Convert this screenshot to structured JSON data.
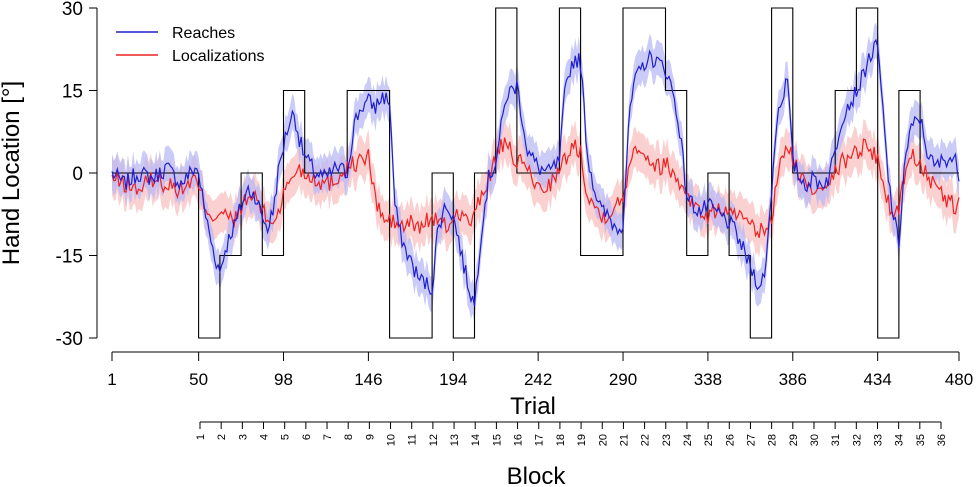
{
  "chart_data": {
    "type": "line",
    "ylabel": "Hand Location [°]",
    "xlabel": "Trial",
    "block_label": "Block",
    "ylim": [
      -30,
      30
    ],
    "xlim": [
      1,
      480
    ],
    "yticks": [
      "30",
      "15",
      "0",
      "-15",
      "-30"
    ],
    "yticks_values": [
      30,
      15,
      0,
      -15,
      -30
    ],
    "xticks": [
      "1",
      "50",
      "98",
      "146",
      "194",
      "242",
      "290",
      "338",
      "386",
      "434",
      "480"
    ],
    "xticks_values": [
      1,
      50,
      98,
      146,
      194,
      242,
      290,
      338,
      386,
      434,
      480
    ],
    "blocks": [
      "1",
      "2",
      "3",
      "4",
      "5",
      "6",
      "7",
      "8",
      "9",
      "10",
      "11",
      "12",
      "13",
      "14",
      "15",
      "16",
      "17",
      "18",
      "19",
      "20",
      "21",
      "22",
      "23",
      "24",
      "25",
      "26",
      "27",
      "28",
      "29",
      "30",
      "31",
      "32",
      "33",
      "34",
      "35",
      "36"
    ],
    "legend": {
      "position": "top-left",
      "entries": [
        "Reaches",
        "Localizations"
      ]
    },
    "colors": {
      "reaches": "#1f1fcf",
      "reaches_band": "#b9b9f5",
      "localizations": "#ee2222",
      "localizations_band": "#f9c0c0",
      "perturbation": "#000000"
    },
    "perturbation_schedule": {
      "x": [
        1,
        50,
        50,
        62,
        62,
        74,
        74,
        86,
        86,
        98,
        98,
        110,
        110,
        134,
        134,
        158,
        158,
        182,
        182,
        194,
        194,
        206,
        206,
        218,
        218,
        230,
        230,
        254,
        254,
        266,
        266,
        290,
        290,
        314,
        314,
        326,
        326,
        338,
        338,
        350,
        350,
        362,
        362,
        374,
        374,
        386,
        386,
        410,
        410,
        422,
        422,
        434,
        434,
        446,
        446,
        458,
        458,
        480
      ],
      "y": [
        0,
        0,
        -30,
        -30,
        -15,
        -15,
        0,
        0,
        -15,
        -15,
        15,
        15,
        0,
        0,
        15,
        15,
        -30,
        -30,
        0,
        0,
        -30,
        -30,
        0,
        0,
        30,
        30,
        0,
        0,
        30,
        30,
        -15,
        -15,
        30,
        30,
        15,
        15,
        -15,
        -15,
        0,
        0,
        -15,
        -15,
        -30,
        -30,
        30,
        30,
        0,
        0,
        15,
        15,
        30,
        30,
        -30,
        -30,
        15,
        15,
        0,
        0
      ]
    },
    "series": [
      {
        "name": "Reaches",
        "x": [
          1,
          8,
          16,
          24,
          32,
          40,
          48,
          50,
          53,
          56,
          59,
          62,
          65,
          68,
          71,
          74,
          78,
          82,
          86,
          89,
          92,
          95,
          98,
          101,
          104,
          107,
          110,
          116,
          122,
          128,
          134,
          138,
          142,
          146,
          150,
          154,
          158,
          161,
          164,
          167,
          170,
          174,
          178,
          182,
          185,
          188,
          191,
          194,
          197,
          200,
          203,
          206,
          210,
          214,
          218,
          221,
          224,
          227,
          230,
          236,
          242,
          248,
          254,
          257,
          260,
          263,
          266,
          270,
          274,
          278,
          282,
          286,
          290,
          293,
          296,
          299,
          302,
          306,
          310,
          314,
          318,
          322,
          326,
          330,
          334,
          338,
          342,
          346,
          350,
          354,
          358,
          362,
          365,
          368,
          371,
          374,
          377,
          380,
          383,
          386,
          390,
          394,
          398,
          402,
          406,
          410,
          413,
          416,
          419,
          422,
          425,
          428,
          431,
          434,
          437,
          440,
          443,
          446,
          449,
          452,
          455,
          458,
          462,
          466,
          470,
          474,
          478,
          480
        ],
        "y": [
          0,
          -2,
          0,
          -1,
          1,
          -2,
          1,
          0,
          -6,
          -11,
          -15,
          -18,
          -14,
          -11,
          -9,
          -6,
          -3,
          -4,
          -8,
          -10,
          -7,
          0,
          5,
          9,
          11,
          6,
          3,
          0,
          -1,
          1,
          0,
          9,
          12,
          13,
          12,
          14,
          13,
          -6,
          -11,
          -14,
          -16,
          -19,
          -20,
          -21,
          -11,
          -7,
          -6,
          -8,
          -12,
          -17,
          -21,
          -24,
          -10,
          -1,
          2,
          8,
          14,
          15,
          16,
          4,
          1,
          0,
          2,
          14,
          19,
          21,
          20,
          3,
          -3,
          -7,
          -8,
          -10,
          -9,
          8,
          16,
          18,
          20,
          21,
          20,
          19,
          15,
          8,
          -4,
          -6,
          -7,
          -6,
          -7,
          -8,
          -9,
          -11,
          -14,
          -17,
          -19,
          -21,
          -16,
          -3,
          10,
          14,
          17,
          2,
          -1,
          -2,
          -1,
          -2,
          -1,
          4,
          9,
          12,
          13,
          15,
          17,
          20,
          22,
          23,
          11,
          -1,
          -8,
          -13,
          1,
          7,
          9,
          10,
          4,
          1,
          2,
          3,
          2,
          0
        ]
      },
      {
        "name": "Localizations",
        "x": [
          1,
          8,
          16,
          24,
          32,
          40,
          48,
          50,
          54,
          58,
          62,
          66,
          70,
          74,
          78,
          82,
          86,
          90,
          94,
          98,
          102,
          106,
          110,
          116,
          122,
          128,
          134,
          140,
          146,
          150,
          154,
          158,
          162,
          166,
          170,
          174,
          178,
          182,
          186,
          190,
          194,
          198,
          202,
          206,
          210,
          214,
          218,
          222,
          226,
          230,
          236,
          242,
          248,
          254,
          258,
          262,
          266,
          270,
          274,
          278,
          282,
          286,
          290,
          294,
          298,
          302,
          306,
          310,
          314,
          318,
          322,
          326,
          330,
          334,
          338,
          342,
          346,
          350,
          354,
          358,
          362,
          366,
          370,
          374,
          378,
          382,
          386,
          390,
          394,
          398,
          402,
          406,
          410,
          414,
          418,
          422,
          426,
          430,
          434,
          438,
          442,
          446,
          450,
          454,
          458,
          462,
          466,
          470,
          474,
          478,
          480
        ],
        "y": [
          -1,
          -2,
          -3,
          -1,
          -2,
          -3,
          -1,
          -3,
          -6,
          -8,
          -7,
          -8,
          -9,
          -6,
          -5,
          -4,
          -7,
          -9,
          -8,
          -4,
          -1,
          1,
          0,
          -1,
          -2,
          -1,
          1,
          2,
          3,
          -5,
          -8,
          -9,
          -9,
          -10,
          -9,
          -10,
          -9,
          -8,
          -9,
          -10,
          -8,
          -7,
          -9,
          -8,
          -4,
          -1,
          3,
          5,
          4,
          2,
          1,
          -3,
          -2,
          0,
          3,
          5,
          4,
          -4,
          -6,
          -8,
          -7,
          -6,
          -5,
          3,
          5,
          4,
          2,
          1,
          2,
          0,
          -2,
          -3,
          -6,
          -7,
          -8,
          -7,
          -6,
          -8,
          -7,
          -9,
          -10,
          -11,
          -10,
          -9,
          1,
          4,
          3,
          -1,
          -2,
          -3,
          -2,
          -1,
          0,
          2,
          3,
          4,
          5,
          4,
          3,
          -3,
          -8,
          -6,
          1,
          3,
          2,
          0,
          -3,
          -4,
          -5,
          -6,
          -6
        ]
      }
    ]
  }
}
